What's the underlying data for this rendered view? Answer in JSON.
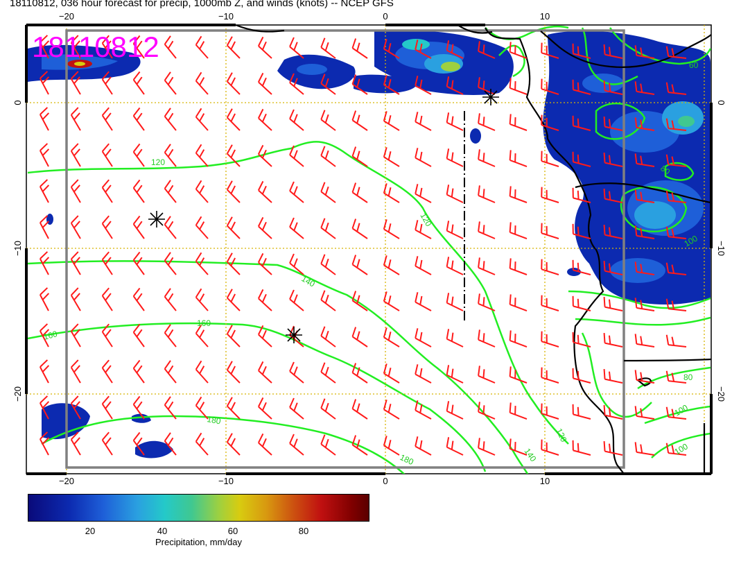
{
  "title": "18110812, 036 hour forecast for precip, 1000mb Z, and winds (knots) -- NCEP GFS",
  "stamp": "18110812",
  "axes": {
    "lon_ticks": [
      "−20",
      "−10",
      "0",
      "10"
    ],
    "lat_ticks": [
      "0",
      "−10",
      "−20"
    ]
  },
  "contour_labels": [
    "120",
    "120",
    "140",
    "140",
    "160",
    "160",
    "180",
    "180",
    "120",
    "100",
    "100",
    "80",
    "80",
    "60",
    "100"
  ],
  "colorbar": {
    "label": "Precipitation, mm/day",
    "ticks": [
      "20",
      "40",
      "60",
      "80"
    ]
  },
  "colors": {
    "barb": "#ff1a1a",
    "contour": "#22ee22",
    "stamp": "#ff00ff",
    "grid": "#d8b400",
    "frame": "#808080"
  },
  "map": {
    "lon_range": [
      -22.5,
      20.5
    ],
    "lat_range": [
      -25.5,
      5
    ],
    "markers": [
      "low-pressure-marker",
      "low-pressure-marker",
      "low-pressure-marker"
    ]
  }
}
